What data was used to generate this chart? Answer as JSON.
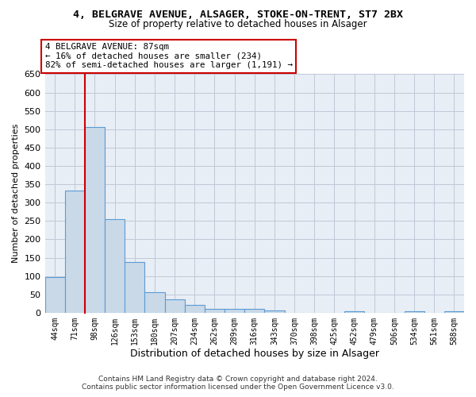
{
  "title_line1": "4, BELGRAVE AVENUE, ALSAGER, STOKE-ON-TRENT, ST7 2BX",
  "title_line2": "Size of property relative to detached houses in Alsager",
  "xlabel": "Distribution of detached houses by size in Alsager",
  "ylabel": "Number of detached properties",
  "categories": [
    "44sqm",
    "71sqm",
    "98sqm",
    "126sqm",
    "153sqm",
    "180sqm",
    "207sqm",
    "234sqm",
    "262sqm",
    "289sqm",
    "316sqm",
    "343sqm",
    "370sqm",
    "398sqm",
    "425sqm",
    "452sqm",
    "479sqm",
    "506sqm",
    "534sqm",
    "561sqm",
    "588sqm"
  ],
  "values": [
    98,
    333,
    505,
    255,
    138,
    55,
    37,
    22,
    10,
    11,
    10,
    7,
    0,
    0,
    0,
    5,
    0,
    0,
    5,
    0,
    5
  ],
  "bar_color": "#c9d9e8",
  "bar_edge_color": "#5b9bd5",
  "vline_color": "#cc0000",
  "annotation_line1": "4 BELGRAVE AVENUE: 87sqm",
  "annotation_line2": "← 16% of detached houses are smaller (234)",
  "annotation_line3": "82% of semi-detached houses are larger (1,191) →",
  "annotation_box_edge": "#cc0000",
  "ylim_max": 650,
  "yticks": [
    0,
    50,
    100,
    150,
    200,
    250,
    300,
    350,
    400,
    450,
    500,
    550,
    600,
    650
  ],
  "grid_color": "#c0c8d8",
  "bg_color": "#e8eef5",
  "footer_line1": "Contains HM Land Registry data © Crown copyright and database right 2024.",
  "footer_line2": "Contains public sector information licensed under the Open Government Licence v3.0."
}
